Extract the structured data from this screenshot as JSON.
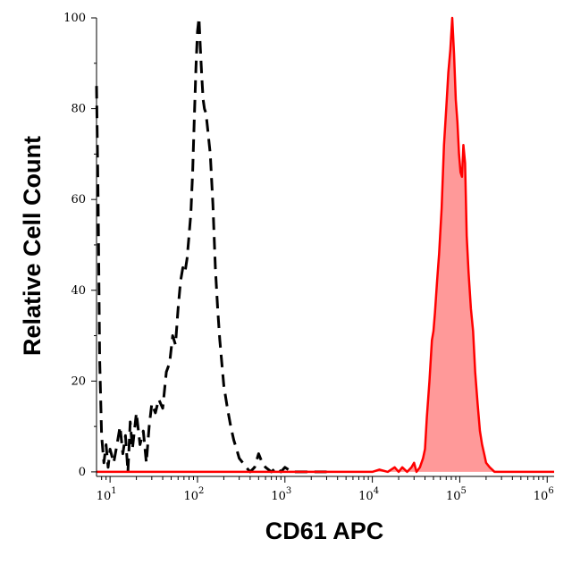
{
  "chart_data": {
    "type": "area",
    "xlabel": "CD61 APC",
    "ylabel": "Relative Cell Count",
    "x_scale": "log",
    "xlim": [
      7,
      1200000
    ],
    "ylim": [
      -1,
      100
    ],
    "x_ticks": [
      {
        "base": "10",
        "exp": "1",
        "value": 10
      },
      {
        "base": "10",
        "exp": "2",
        "value": 100
      },
      {
        "base": "10",
        "exp": "3",
        "value": 1000
      },
      {
        "base": "10",
        "exp": "4",
        "value": 10000
      },
      {
        "base": "10",
        "exp": "5",
        "value": 100000
      },
      {
        "base": "10",
        "exp": "6",
        "value": 1000000
      }
    ],
    "y_ticks": [
      {
        "label": "0",
        "value": 0
      },
      {
        "label": "20",
        "value": 20
      },
      {
        "label": "40",
        "value": 40
      },
      {
        "label": "60",
        "value": 60
      },
      {
        "label": "80",
        "value": 80
      },
      {
        "label": "100",
        "value": 100
      }
    ],
    "grid": false,
    "series": [
      {
        "style": "dashed",
        "color": "#000000",
        "fill": "none",
        "points": [
          [
            7,
            85
          ],
          [
            7.3,
            60
          ],
          [
            7.6,
            25
          ],
          [
            8,
            8
          ],
          [
            8.5,
            2
          ],
          [
            9,
            6
          ],
          [
            9.5,
            1
          ],
          [
            10,
            5
          ],
          [
            11,
            2
          ],
          [
            12,
            6
          ],
          [
            13,
            10
          ],
          [
            14,
            4
          ],
          [
            15,
            8
          ],
          [
            16,
            0
          ],
          [
            17,
            11
          ],
          [
            18,
            5
          ],
          [
            20,
            13
          ],
          [
            22,
            6
          ],
          [
            24,
            9
          ],
          [
            26,
            2
          ],
          [
            28,
            10
          ],
          [
            30,
            15
          ],
          [
            33,
            13
          ],
          [
            36,
            16
          ],
          [
            40,
            14
          ],
          [
            44,
            22
          ],
          [
            48,
            24
          ],
          [
            52,
            30
          ],
          [
            56,
            28
          ],
          [
            60,
            36
          ],
          [
            64,
            42
          ],
          [
            68,
            45
          ],
          [
            72,
            44
          ],
          [
            76,
            47
          ],
          [
            80,
            52
          ],
          [
            84,
            57
          ],
          [
            88,
            66
          ],
          [
            92,
            78
          ],
          [
            96,
            89
          ],
          [
            100,
            97
          ],
          [
            104,
            100
          ],
          [
            108,
            93
          ],
          [
            112,
            87
          ],
          [
            116,
            82
          ],
          [
            120,
            80
          ],
          [
            125,
            79
          ],
          [
            130,
            76
          ],
          [
            140,
            70
          ],
          [
            150,
            59
          ],
          [
            160,
            45
          ],
          [
            170,
            36
          ],
          [
            180,
            29
          ],
          [
            200,
            19
          ],
          [
            220,
            14
          ],
          [
            240,
            10
          ],
          [
            260,
            7
          ],
          [
            280,
            5
          ],
          [
            300,
            3
          ],
          [
            330,
            2
          ],
          [
            360,
            1
          ],
          [
            400,
            0
          ],
          [
            450,
            1
          ],
          [
            500,
            4
          ],
          [
            550,
            2
          ],
          [
            600,
            1
          ],
          [
            700,
            0
          ],
          [
            800,
            1
          ],
          [
            900,
            0
          ],
          [
            1000,
            1
          ],
          [
            1200,
            0
          ],
          [
            1500,
            0
          ],
          [
            2000,
            0
          ],
          [
            3000,
            0
          ]
        ]
      },
      {
        "style": "solid",
        "color": "#ff0000",
        "fill": "#ff9999",
        "points": [
          [
            7,
            0
          ],
          [
            100,
            0
          ],
          [
            1000,
            0
          ],
          [
            10000,
            0
          ],
          [
            12000,
            0.5
          ],
          [
            15000,
            0
          ],
          [
            18000,
            1
          ],
          [
            20000,
            0
          ],
          [
            22000,
            1
          ],
          [
            25000,
            0
          ],
          [
            28000,
            1
          ],
          [
            30000,
            2
          ],
          [
            32000,
            0
          ],
          [
            35000,
            1
          ],
          [
            38000,
            3
          ],
          [
            40000,
            5
          ],
          [
            42000,
            12
          ],
          [
            45000,
            20
          ],
          [
            48000,
            29
          ],
          [
            50000,
            31
          ],
          [
            52000,
            35
          ],
          [
            55000,
            42
          ],
          [
            58000,
            48
          ],
          [
            62000,
            58
          ],
          [
            66000,
            72
          ],
          [
            70000,
            80
          ],
          [
            74000,
            88
          ],
          [
            78000,
            93
          ],
          [
            82000,
            100
          ],
          [
            86000,
            92
          ],
          [
            90000,
            82
          ],
          [
            94000,
            77
          ],
          [
            98000,
            70
          ],
          [
            102000,
            66
          ],
          [
            106000,
            65
          ],
          [
            110000,
            72
          ],
          [
            115000,
            68
          ],
          [
            120000,
            52
          ],
          [
            126000,
            44
          ],
          [
            134000,
            36
          ],
          [
            142000,
            31
          ],
          [
            150000,
            22
          ],
          [
            160000,
            15
          ],
          [
            170000,
            9
          ],
          [
            180000,
            6
          ],
          [
            190000,
            4
          ],
          [
            200000,
            2
          ],
          [
            220000,
            1
          ],
          [
            250000,
            0
          ],
          [
            300000,
            0
          ],
          [
            500000,
            0
          ],
          [
            1000000,
            0
          ],
          [
            1200000,
            0
          ]
        ]
      }
    ]
  }
}
